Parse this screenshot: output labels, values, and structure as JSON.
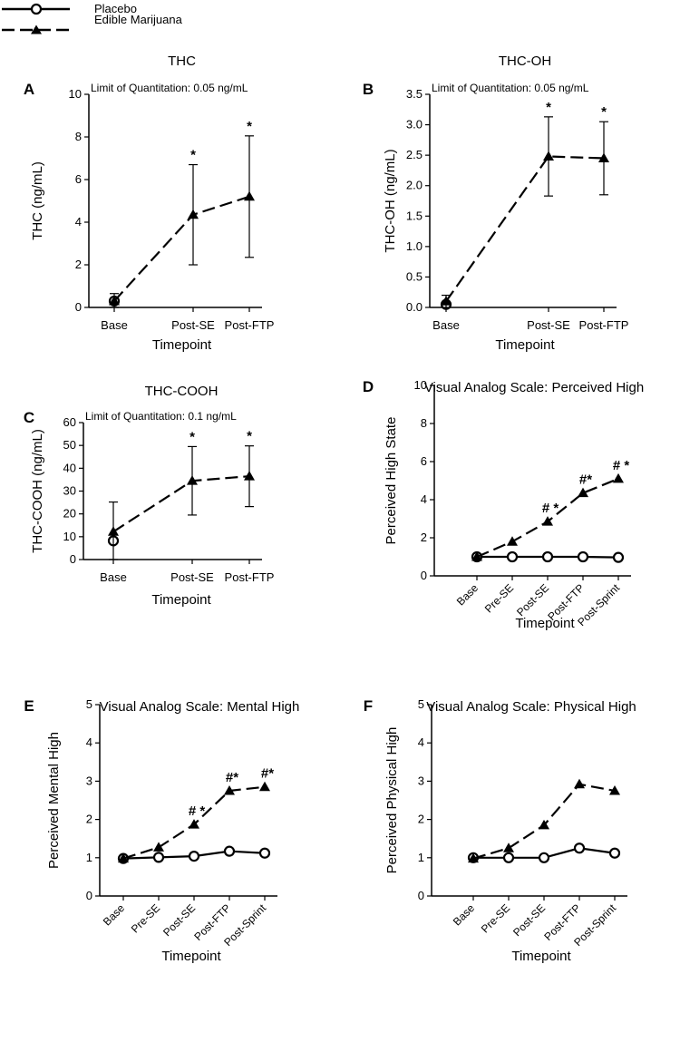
{
  "legend": {
    "items": [
      {
        "label": "Placebo",
        "style": "solid",
        "marker": "open-circle"
      },
      {
        "label": "Edible Marijuana",
        "style": "dashed",
        "marker": "filled-triangle"
      }
    ]
  },
  "colors": {
    "ink": "#000000",
    "background": "#ffffff"
  },
  "chart_data": [
    {
      "panel_letter": "A",
      "type": "line",
      "title": "THC",
      "annotation": "Limit of Quantitation: 0.05 ng/mL",
      "ylabel": "THC (ng/mL)",
      "xlabel": "Timepoint",
      "ylim": [
        0,
        10
      ],
      "yticks": [
        0,
        2,
        4,
        6,
        8,
        10
      ],
      "categories": [
        "Base",
        "Post-SE",
        "Post-FTP"
      ],
      "rotated_ticks": false,
      "series": [
        {
          "name": "Placebo",
          "values": [
            0.3,
            null,
            null
          ],
          "err": [
            null,
            null,
            null
          ]
        },
        {
          "name": "Edible Marijuana",
          "values": [
            0.3,
            4.35,
            5.2
          ],
          "err": [
            0.35,
            2.35,
            2.85
          ]
        }
      ],
      "marks": [
        {
          "series": 1,
          "index": 1,
          "text": "*"
        },
        {
          "series": 1,
          "index": 2,
          "text": "*"
        }
      ]
    },
    {
      "panel_letter": "B",
      "type": "line",
      "title": "THC-OH",
      "annotation": "Limit of Quantitation: 0.05 ng/mL",
      "ylabel": "THC-OH (ng/mL)",
      "xlabel": "Timepoint",
      "ylim": [
        0,
        3.5
      ],
      "yticks": [
        "0.0",
        "0.5",
        "1.0",
        "1.5",
        "2.0",
        "2.5",
        "3.0",
        "3.5"
      ],
      "categories": [
        "Base",
        "Post-SE",
        "Post-FTP"
      ],
      "rotated_ticks": false,
      "series": [
        {
          "name": "Placebo",
          "values": [
            0.05,
            null,
            null
          ],
          "err": [
            null,
            null,
            null
          ]
        },
        {
          "name": "Edible Marijuana",
          "values": [
            0.1,
            2.48,
            2.45
          ],
          "err": [
            0.1,
            0.65,
            0.6
          ]
        }
      ],
      "marks": [
        {
          "series": 1,
          "index": 1,
          "text": "*"
        },
        {
          "series": 1,
          "index": 2,
          "text": "*"
        }
      ]
    },
    {
      "panel_letter": "C",
      "type": "line",
      "title": "THC-COOH",
      "annotation": "Limit of Quantitation: 0.1 ng/mL",
      "ylabel": "THC-COOH (ng/mL)",
      "xlabel": "Timepoint",
      "ylim": [
        0,
        60
      ],
      "yticks": [
        0,
        10,
        20,
        30,
        40,
        50,
        60
      ],
      "categories": [
        "Base",
        "Post-SE",
        "Post-FTP"
      ],
      "rotated_ticks": false,
      "series": [
        {
          "name": "Placebo",
          "values": [
            8.2,
            null,
            null
          ],
          "err": [
            null,
            null,
            null
          ]
        },
        {
          "name": "Edible Marijuana",
          "values": [
            12.2,
            34.5,
            36.5
          ],
          "err": [
            13,
            15,
            13.3
          ]
        }
      ],
      "marks": [
        {
          "series": 1,
          "index": 1,
          "text": "*"
        },
        {
          "series": 1,
          "index": 2,
          "text": "*"
        }
      ]
    },
    {
      "panel_letter": "D",
      "type": "line",
      "title": "Visual Analog Scale: Perceived High",
      "annotation": "",
      "ylabel": "Perceived High State",
      "xlabel": "Timepoint",
      "ylim": [
        0,
        10
      ],
      "yticks": [
        0,
        2,
        4,
        6,
        8,
        10
      ],
      "categories": [
        "Base",
        "Pre-SE",
        "Post-SE",
        "Post-FTP",
        "Post-Sprint"
      ],
      "rotated_ticks": true,
      "series": [
        {
          "name": "Placebo",
          "values": [
            1.0,
            1.0,
            1.0,
            1.0,
            0.97
          ]
        },
        {
          "name": "Edible Marijuana",
          "values": [
            1.0,
            1.8,
            2.85,
            4.35,
            5.1
          ]
        }
      ],
      "marks": [
        {
          "series": 1,
          "index": 2,
          "text": "# *"
        },
        {
          "series": 1,
          "index": 3,
          "text": "#*"
        },
        {
          "series": 1,
          "index": 4,
          "text": "# *"
        }
      ]
    },
    {
      "panel_letter": "E",
      "type": "line",
      "title": "Visual Analog Scale: Mental High",
      "annotation": "",
      "ylabel": "Perceived Mental High",
      "xlabel": "Timepoint",
      "ylim": [
        0,
        5
      ],
      "yticks": [
        0,
        1,
        2,
        3,
        4,
        5
      ],
      "categories": [
        "Base",
        "Pre-SE",
        "Post-SE",
        "Post-FTP",
        "Post-Sprint"
      ],
      "rotated_ticks": true,
      "series": [
        {
          "name": "Placebo",
          "values": [
            0.98,
            1.01,
            1.04,
            1.17,
            1.12
          ]
        },
        {
          "name": "Edible Marijuana",
          "values": [
            0.98,
            1.27,
            1.87,
            2.75,
            2.85
          ]
        }
      ],
      "marks": [
        {
          "series": 1,
          "index": 2,
          "text": "# *"
        },
        {
          "series": 1,
          "index": 3,
          "text": "#*"
        },
        {
          "series": 1,
          "index": 4,
          "text": "#*"
        }
      ]
    },
    {
      "panel_letter": "F",
      "type": "line",
      "title": "Visual Analog Scale: Physical High",
      "annotation": "",
      "ylabel": "Perceived Physical High",
      "xlabel": "Timepoint",
      "ylim": [
        0,
        5
      ],
      "yticks": [
        0,
        1,
        2,
        3,
        4,
        5
      ],
      "categories": [
        "Base",
        "Pre-SE",
        "Post-SE",
        "Post-FTP",
        "Post-Sprint"
      ],
      "rotated_ticks": true,
      "series": [
        {
          "name": "Placebo",
          "values": [
            1.0,
            1.0,
            1.0,
            1.25,
            1.12
          ]
        },
        {
          "name": "Edible Marijuana",
          "values": [
            0.98,
            1.25,
            1.85,
            2.92,
            2.75
          ]
        }
      ],
      "marks": []
    }
  ]
}
